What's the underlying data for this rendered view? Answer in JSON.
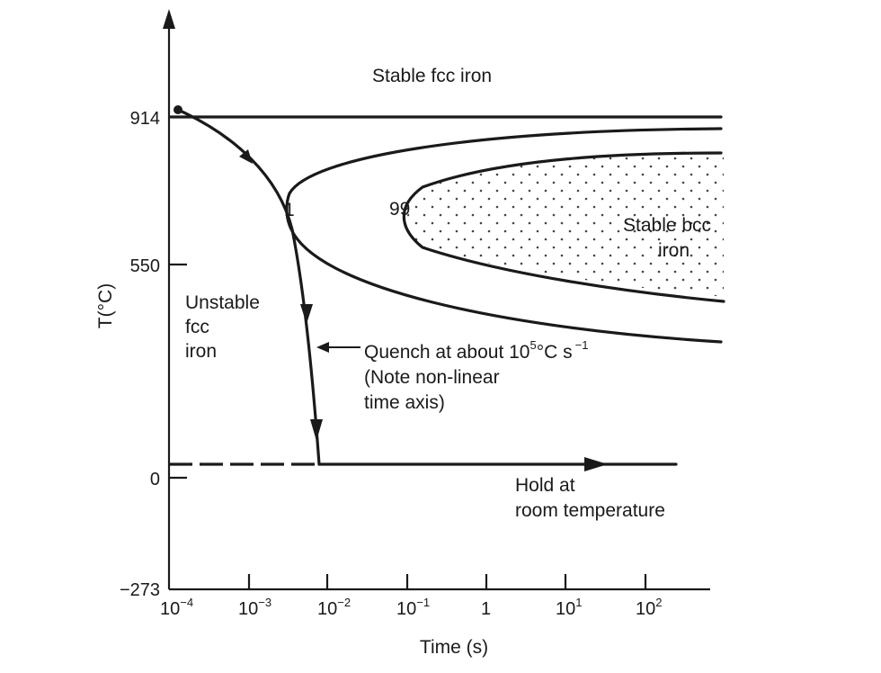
{
  "chart_data": {
    "type": "diagram",
    "y_axis": {
      "label": "T(°C)",
      "ticks": [
        {
          "value": 914,
          "label": "914"
        },
        {
          "value": 550,
          "label": "550"
        },
        {
          "value": 0,
          "label": "0"
        },
        {
          "value": -273,
          "label": "−273"
        }
      ]
    },
    "x_axis": {
      "label": "Time (s)",
      "scale": "log",
      "ticks": [
        {
          "value": 0.0001,
          "base": "10",
          "exp": "−4",
          "label": "10−4"
        },
        {
          "value": 0.001,
          "base": "10",
          "exp": "−3",
          "label": "10−3"
        },
        {
          "value": 0.01,
          "base": "10",
          "exp": "−2",
          "label": "10−2"
        },
        {
          "value": 0.1,
          "base": "10",
          "exp": "−1",
          "label": "10−1"
        },
        {
          "value": 1,
          "base": "1",
          "exp": "",
          "label": "1"
        },
        {
          "value": 10,
          "base": "10",
          "exp": "1",
          "label": "101"
        },
        {
          "value": 100,
          "base": "10",
          "exp": "2",
          "label": "102"
        }
      ]
    },
    "curve_labels": {
      "start": "1",
      "finish": "99"
    },
    "region_labels": {
      "stable_fcc": "Stable fcc iron",
      "stable_bcc_line1": "Stable bcc",
      "stable_bcc_line2": "iron",
      "unstable_fcc_line1": "Unstable",
      "unstable_fcc_line2": "fcc",
      "unstable_fcc_line3": "iron"
    },
    "annotations": {
      "quench_prefix": "Quench at about 10",
      "quench_exp": "5",
      "quench_mid": "°C s",
      "quench_exp2": "−1",
      "quench_note_line1": "(Note non-linear",
      "quench_note_line2": "time axis)",
      "hold_line1": "Hold at",
      "hold_line2": "room temperature"
    },
    "colors": {
      "ink": "#1a1a1a",
      "background": "#ffffff"
    }
  }
}
